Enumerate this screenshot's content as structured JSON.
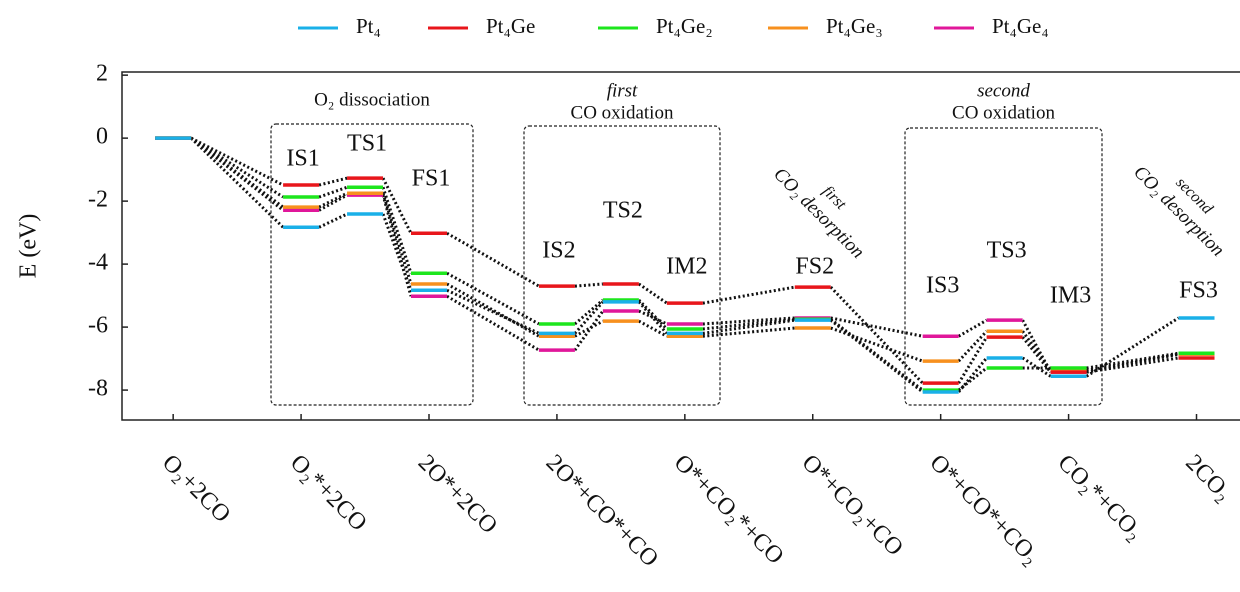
{
  "chart_data": {
    "type": "line",
    "ylabel": "E (eV)",
    "categories": [
      "O₂+2CO",
      "O₂*+2CO",
      "2O*+2CO",
      "2O*+CO*+CO",
      "O*+CO₂*+CO",
      "O*+CO₂+CO",
      "O*+CO*+CO₂",
      "CO₂*+CO₂",
      "2CO₂"
    ],
    "x": [
      0,
      1,
      1.5,
      2,
      3,
      3.5,
      4,
      5,
      6,
      6.5,
      7,
      8
    ],
    "state_labels": [
      null,
      "IS1",
      "TS1",
      "FS1",
      "IS2",
      "TS2",
      "IM2",
      "FS2",
      "IS3",
      "TS3",
      "IM3",
      "FS3"
    ],
    "series": [
      {
        "name": "Pt₄",
        "color": "#1ab0e8",
        "values": [
          0,
          -2.83,
          -2.41,
          -4.83,
          -6.2,
          -5.2,
          -6.2,
          -5.78,
          -8.06,
          -6.98,
          -7.56,
          -5.71
        ]
      },
      {
        "name": "Pt₄Ge",
        "color": "#e8161b",
        "values": [
          0,
          -1.49,
          -1.27,
          -3.02,
          -4.7,
          -4.63,
          -5.24,
          -4.73,
          -7.78,
          -6.32,
          -7.43,
          -6.98
        ]
      },
      {
        "name": "Pt₄Ge₂",
        "color": "#1de61d",
        "values": [
          0,
          -1.87,
          -1.56,
          -4.29,
          -5.9,
          -5.14,
          -6.06,
          -5.75,
          -8.0,
          -7.3,
          -7.3,
          -6.83
        ]
      },
      {
        "name": "Pt₄Ge₃",
        "color": "#f7901e",
        "values": [
          0,
          -2.19,
          -1.75,
          -4.63,
          -6.29,
          -5.81,
          -6.29,
          -6.03,
          -7.08,
          -6.13,
          -7.37,
          -6.86
        ]
      },
      {
        "name": "Pt₄Ge₄",
        "color": "#e0179a",
        "values": [
          0,
          -2.29,
          -1.81,
          -5.02,
          -6.73,
          -5.49,
          -5.9,
          -5.71,
          -6.29,
          -5.78,
          -7.43,
          -6.86
        ]
      }
    ],
    "boxes": [
      {
        "title": [
          "O₂ dissociation"
        ]
      },
      {
        "title": [
          "first",
          "CO oxidation"
        ]
      },
      {
        "title": [
          "second",
          "CO oxidation"
        ]
      }
    ],
    "desorption_labels": [
      [
        "first",
        "CO₂ desorption"
      ],
      [
        "second",
        "CO₂ desorption"
      ]
    ],
    "xlim": [
      -0.4,
      8.34
    ],
    "ylim": [
      -8.95,
      2.1
    ],
    "yticks": [
      2,
      0,
      -2,
      -4,
      -6,
      -8
    ],
    "legend": "top"
  }
}
